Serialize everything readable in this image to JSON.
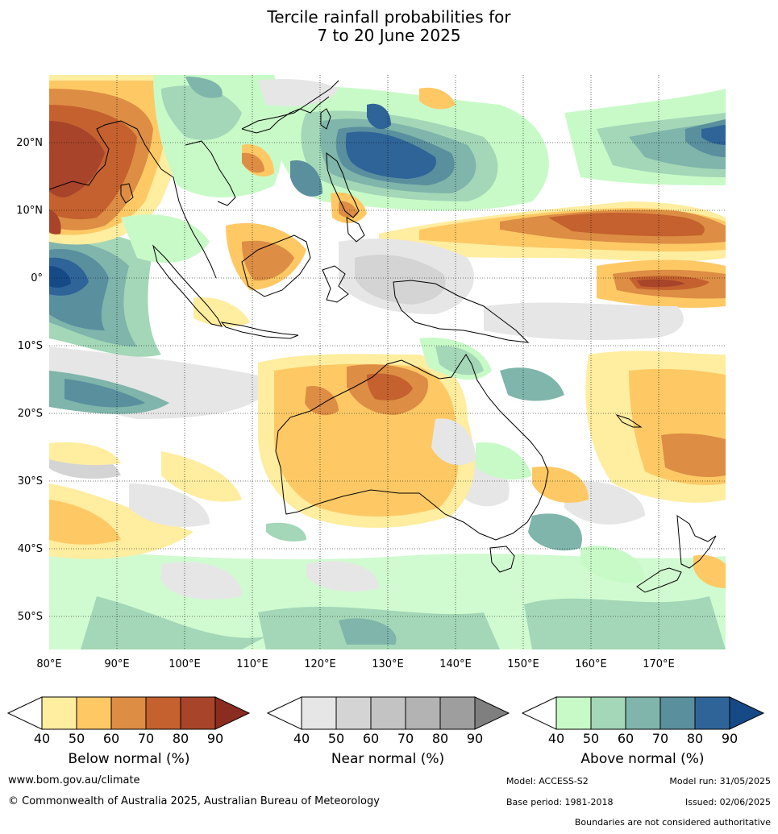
{
  "title": {
    "line1": "Tercile rainfall probabilities for",
    "line2": "7 to 20 June 2025"
  },
  "axes": {
    "lon_labels": [
      "80°E",
      "90°E",
      "100°E",
      "110°E",
      "120°E",
      "130°E",
      "140°E",
      "150°E",
      "160°E",
      "170°E"
    ],
    "lat_labels": [
      "20°N",
      "10°N",
      "0°",
      "10°S",
      "20°S",
      "30°S",
      "40°S",
      "50°S"
    ],
    "lon_range": [
      80,
      180
    ],
    "lat_range": [
      -55,
      30
    ]
  },
  "legends": [
    {
      "label": "Below normal (%)",
      "ticks": [
        "40",
        "50",
        "60",
        "70",
        "80",
        "90"
      ],
      "colors": [
        "#ffffff",
        "#ffeda0",
        "#fec965",
        "#dd8d44",
        "#c4612e",
        "#a8442a",
        "#8b2c20"
      ]
    },
    {
      "label": "Near normal (%)",
      "ticks": [
        "40",
        "50",
        "60",
        "70",
        "80",
        "90"
      ],
      "colors": [
        "#ffffff",
        "#e6e6e6",
        "#d4d4d4",
        "#c3c3c3",
        "#b3b3b3",
        "#9e9e9e",
        "#7f7f7f"
      ]
    },
    {
      "label": "Above normal (%)",
      "ticks": [
        "40",
        "50",
        "60",
        "70",
        "80",
        "90"
      ],
      "colors": [
        "#ffffff",
        "#c8fac8",
        "#a3d7b7",
        "#7fb5aa",
        "#5a8f9e",
        "#2f6498",
        "#164a87"
      ]
    }
  ],
  "footer": {
    "website": "www.bom.gov.au/climate",
    "copyright": "© Commonwealth of Australia 2025, Australian Bureau of Meteorology",
    "model": "Model: ACCESS-S2",
    "model_run": "Model run: 31/05/2025",
    "base_period": "Base period: 1981-2018",
    "issued": "Issued: 02/06/2025",
    "disclaimer": "Boundaries are not considered authoritative"
  }
}
